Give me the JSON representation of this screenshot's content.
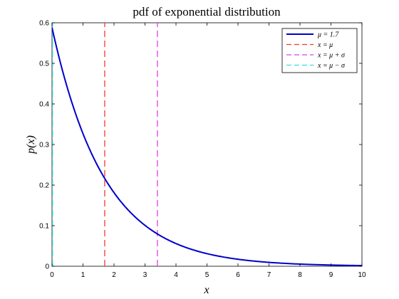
{
  "chart_data": {
    "type": "line",
    "title": "pdf of exponential distribution",
    "xlabel": "x",
    "ylabel": "p(x)",
    "xlim": [
      0,
      10
    ],
    "ylim": [
      0,
      0.6
    ],
    "xticks": [
      0,
      1,
      2,
      3,
      4,
      5,
      6,
      7,
      8,
      9,
      10
    ],
    "yticks": [
      0,
      0.1,
      0.2,
      0.3,
      0.4,
      0.5,
      0.6
    ],
    "xtick_labels": [
      "0",
      "1",
      "2",
      "3",
      "4",
      "5",
      "6",
      "7",
      "8",
      "9",
      "10"
    ],
    "ytick_labels": [
      "0",
      "0.1",
      "0.2",
      "0.3",
      "0.4",
      "0.5",
      "0.6"
    ],
    "grid": false,
    "legend_position": "top-right",
    "mu": 1.7,
    "series": [
      {
        "name": "μ = 1.7",
        "style": "solid",
        "color": "#0000cc",
        "x": [
          0,
          0.5,
          1,
          1.5,
          1.7,
          2,
          2.5,
          3,
          3.4,
          3.5,
          4,
          4.5,
          5,
          5.5,
          6,
          6.5,
          7,
          7.5,
          8,
          8.5,
          9,
          9.5,
          10
        ],
        "y": [
          0.5882,
          0.4392,
          0.3264,
          0.2429,
          0.2164,
          0.1808,
          0.1347,
          0.1003,
          0.0796,
          0.0747,
          0.0556,
          0.0414,
          0.0308,
          0.023,
          0.0171,
          0.0127,
          0.0096,
          0.0071,
          0.0053,
          0.0039,
          0.003,
          0.0022,
          0.0016
        ]
      },
      {
        "name": "x = μ",
        "style": "dashed",
        "color": "#ff3333",
        "x": [
          1.7,
          1.7
        ],
        "y": [
          0,
          0.6
        ]
      },
      {
        "name": "x = μ + σ",
        "style": "dashed",
        "color": "#e040e0",
        "x": [
          3.4,
          3.4
        ],
        "y": [
          0,
          0.6
        ]
      },
      {
        "name": "x = μ − σ",
        "style": "dashed",
        "color": "#33e0e0",
        "x": [
          0,
          0
        ],
        "y": [
          0,
          0.6
        ]
      }
    ]
  }
}
